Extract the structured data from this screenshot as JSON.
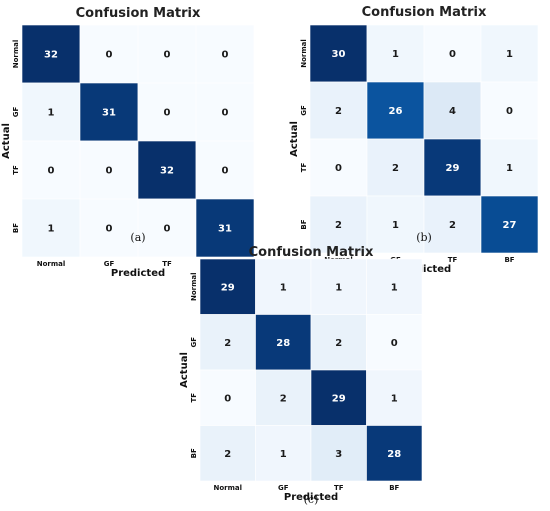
{
  "chart_data": [
    {
      "type": "heatmap",
      "caption": "(a)",
      "title": "Confusion Matrix",
      "xlabel": "Predicted",
      "ylabel": "Actual",
      "x_labels": [
        "Normal",
        "GF",
        "TF",
        "BF"
      ],
      "y_labels": [
        "Normal",
        "GF",
        "TF",
        "BF"
      ],
      "matrix": [
        [
          32,
          0,
          0,
          0
        ],
        [
          1,
          31,
          0,
          0
        ],
        [
          0,
          0,
          32,
          0
        ],
        [
          1,
          0,
          0,
          31
        ]
      ],
      "colormap": "Blues",
      "grid": false
    },
    {
      "type": "heatmap",
      "caption": "(b)",
      "title": "Confusion Matrix",
      "xlabel": "Predicted",
      "ylabel": "Actual",
      "x_labels": [
        "Normal",
        "GF",
        "TF",
        "BF"
      ],
      "y_labels": [
        "Normal",
        "GF",
        "TF",
        "BF"
      ],
      "matrix": [
        [
          30,
          1,
          0,
          1
        ],
        [
          2,
          26,
          4,
          0
        ],
        [
          0,
          2,
          29,
          1
        ],
        [
          2,
          1,
          2,
          27
        ]
      ],
      "colormap": "Blues",
      "grid": false
    },
    {
      "type": "heatmap",
      "caption": "(c)",
      "title": "Confusion Matrix",
      "xlabel": "Predicted",
      "ylabel": "Actual",
      "x_labels": [
        "Normal",
        "GF",
        "TF",
        "BF"
      ],
      "y_labels": [
        "Normal",
        "GF",
        "TF",
        "BF"
      ],
      "matrix": [
        [
          29,
          1,
          1,
          1
        ],
        [
          2,
          28,
          2,
          0
        ],
        [
          0,
          2,
          29,
          1
        ],
        [
          2,
          1,
          3,
          28
        ]
      ],
      "colormap": "Blues",
      "grid": false
    }
  ]
}
